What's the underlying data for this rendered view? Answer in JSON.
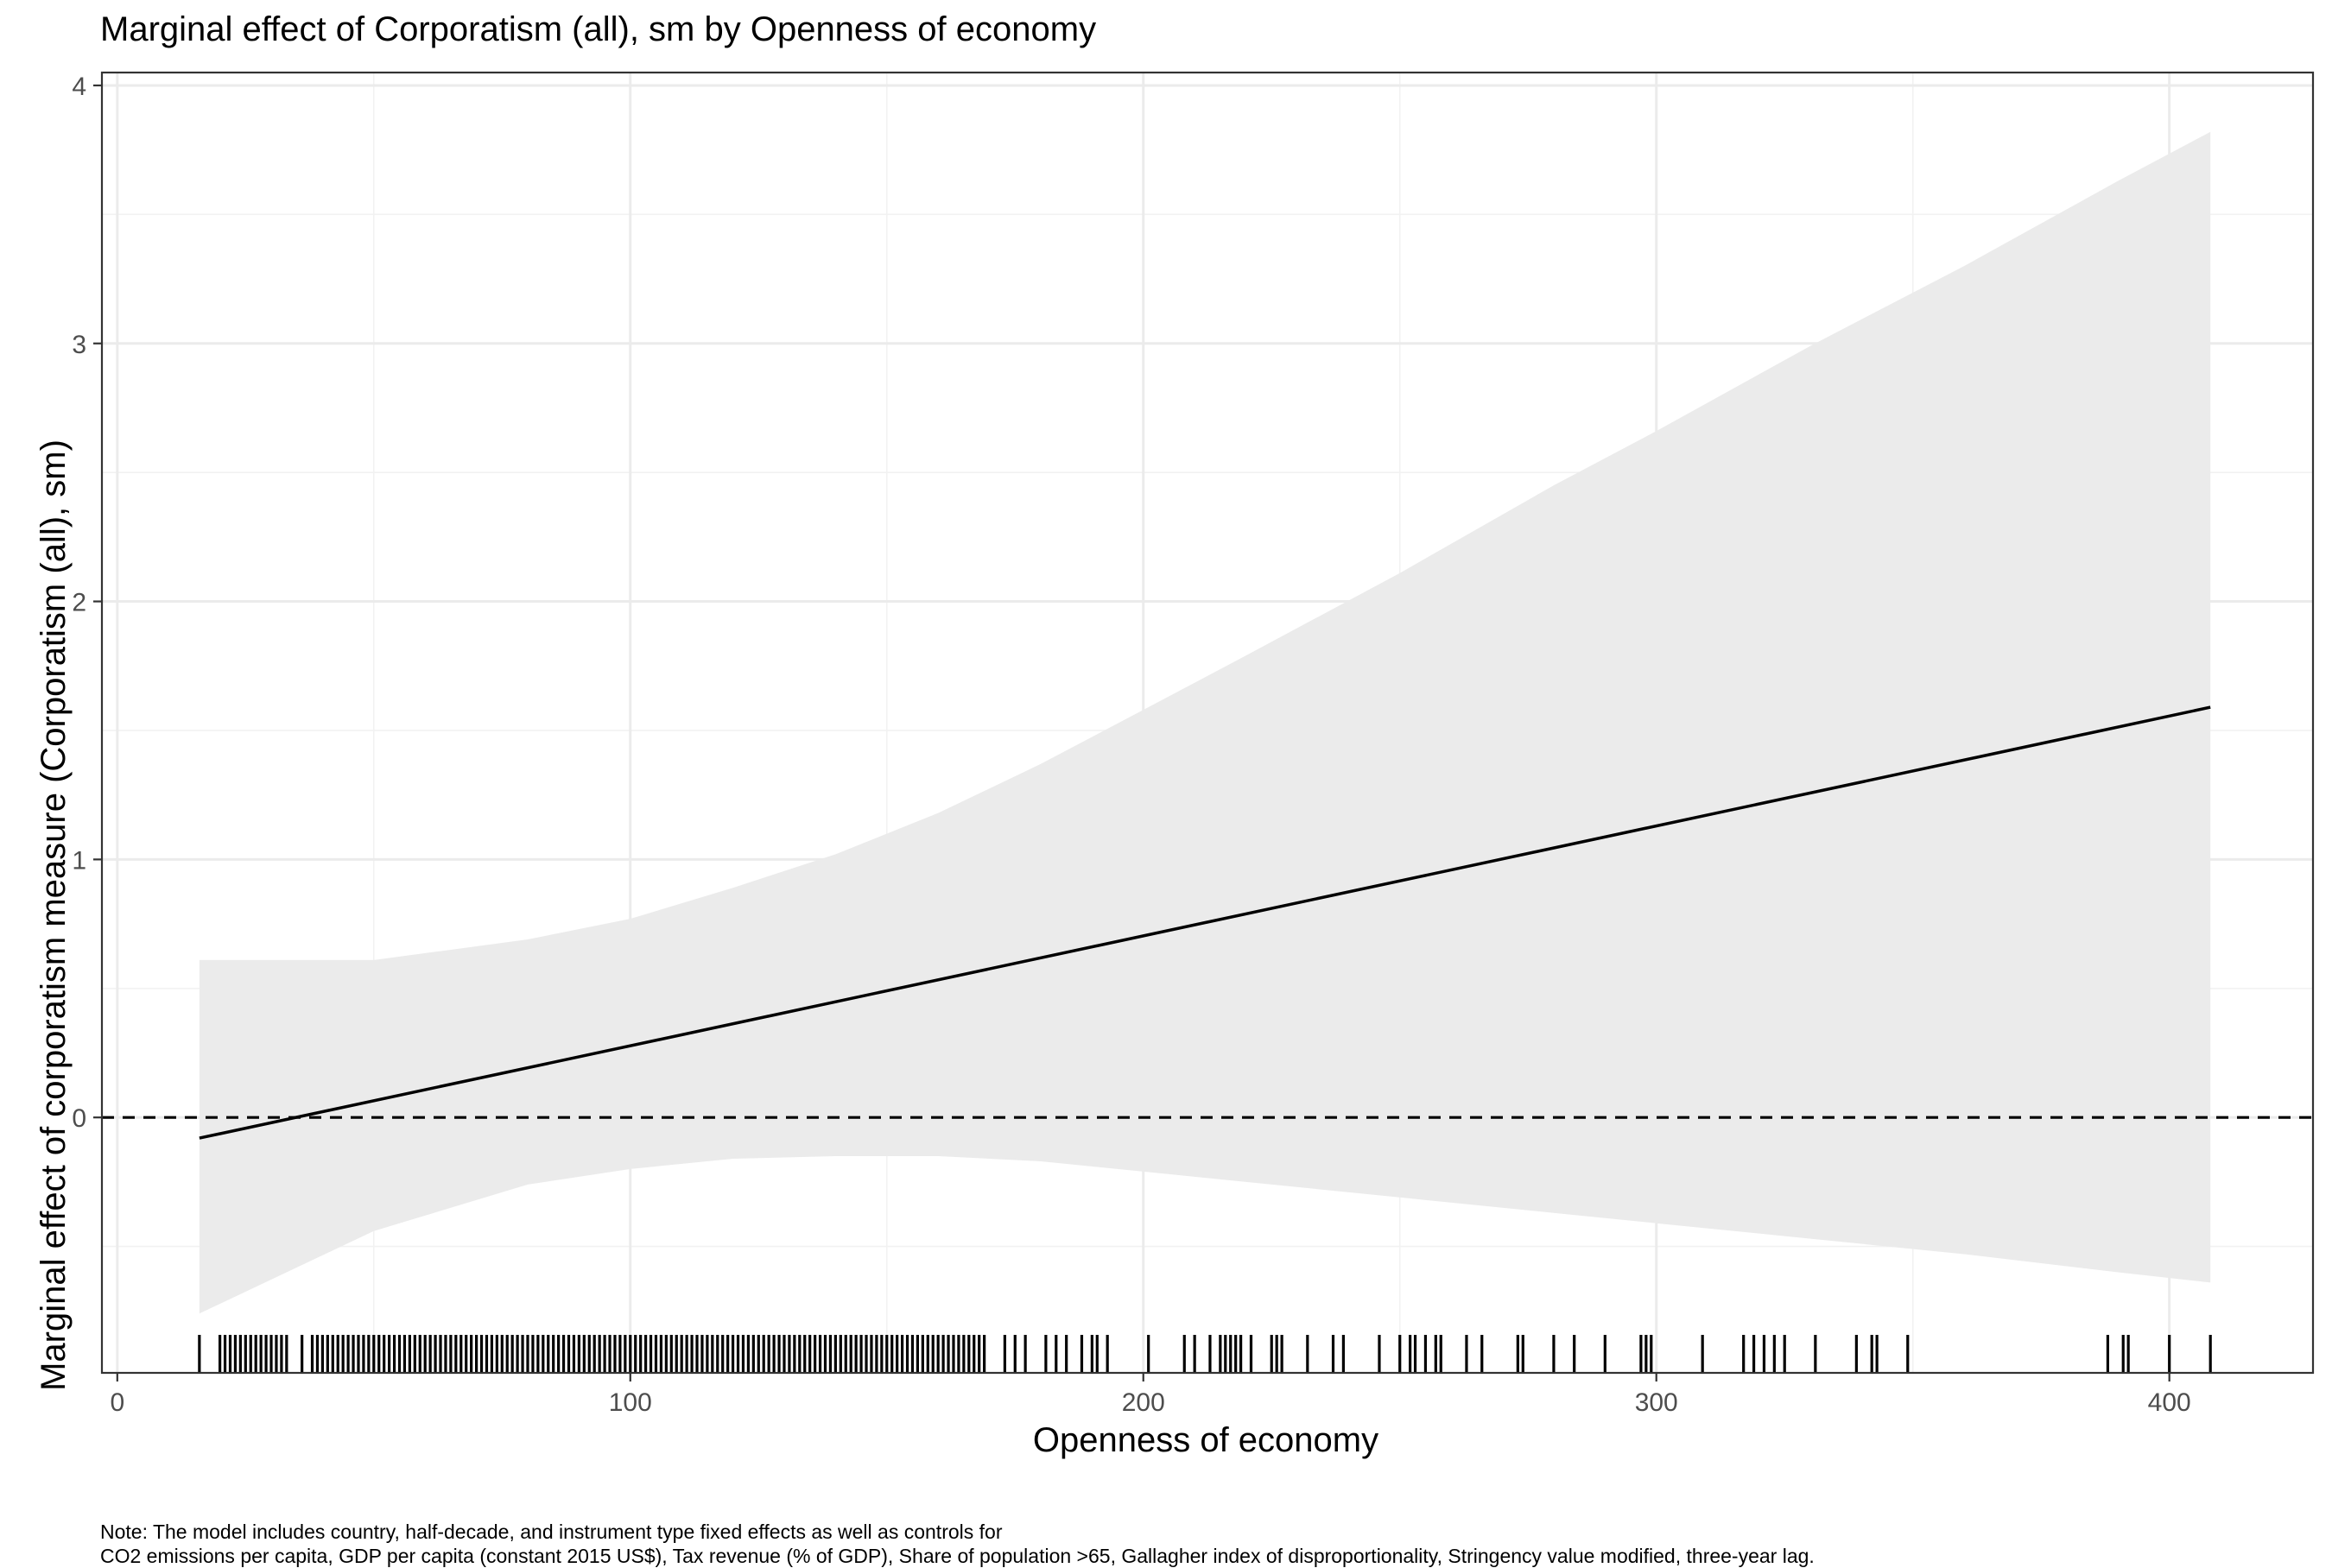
{
  "chart_data": {
    "type": "line",
    "title": "Marginal effect of Corporatism (all), sm by Openness of economy",
    "xlabel": "Openness of economy",
    "ylabel": "Marginal effect of corporatism measure (Corporatism (all), sm)",
    "xlim": [
      -3,
      428
    ],
    "ylim": [
      -0.99,
      4.05
    ],
    "x_ticks": [
      0,
      100,
      200,
      300,
      400
    ],
    "x_tick_labels": [
      "0",
      "100",
      "200",
      "300",
      "400"
    ],
    "y_ticks": [
      0,
      1,
      2,
      3,
      4
    ],
    "y_tick_labels": [
      "0",
      "1",
      "2",
      "3",
      "4"
    ],
    "grid": true,
    "reference_line": {
      "y": 0,
      "style": "dashed",
      "color": "#000000"
    },
    "series": [
      {
        "kind": "estimate_line",
        "color": "#000000",
        "x": [
          16,
          408
        ],
        "y": [
          -0.08,
          1.59
        ]
      }
    ],
    "confidence_band": {
      "color": "#ebebeb",
      "x": [
        16,
        50,
        80,
        100,
        120,
        140,
        160,
        180,
        200,
        220,
        250,
        280,
        300,
        330,
        360,
        390,
        408
      ],
      "upper": [
        0.61,
        0.61,
        0.69,
        0.77,
        0.89,
        1.02,
        1.18,
        1.37,
        1.58,
        1.79,
        2.11,
        2.45,
        2.66,
        2.99,
        3.3,
        3.63,
        3.82
      ],
      "lower": [
        -0.76,
        -0.44,
        -0.26,
        -0.2,
        -0.16,
        -0.15,
        -0.15,
        -0.17,
        -0.21,
        -0.25,
        -0.31,
        -0.37,
        -0.41,
        -0.47,
        -0.53,
        -0.6,
        -0.64
      ]
    },
    "rug": {
      "color": "#000000",
      "x": [
        16,
        20,
        21,
        22,
        23,
        24,
        25,
        26,
        27,
        28,
        29,
        30,
        31,
        32,
        33,
        36,
        38,
        39,
        40,
        41,
        42,
        43,
        44,
        45,
        46,
        47,
        48,
        49,
        50,
        51,
        52,
        53,
        54,
        55,
        56,
        57,
        58,
        59,
        60,
        61,
        62,
        63,
        64,
        65,
        66,
        67,
        68,
        69,
        70,
        71,
        72,
        73,
        74,
        75,
        76,
        77,
        78,
        79,
        80,
        81,
        82,
        83,
        84,
        85,
        86,
        87,
        88,
        89,
        90,
        91,
        92,
        93,
        94,
        95,
        96,
        97,
        98,
        99,
        100,
        101,
        102,
        103,
        104,
        105,
        106,
        107,
        108,
        109,
        110,
        111,
        112,
        113,
        114,
        115,
        116,
        117,
        118,
        119,
        120,
        121,
        122,
        123,
        124,
        125,
        126,
        127,
        128,
        129,
        130,
        131,
        132,
        133,
        134,
        135,
        136,
        137,
        138,
        139,
        140,
        141,
        142,
        143,
        144,
        145,
        146,
        147,
        148,
        149,
        150,
        151,
        152,
        153,
        154,
        155,
        156,
        157,
        158,
        159,
        160,
        161,
        162,
        163,
        164,
        165,
        166,
        167,
        168,
        169,
        173,
        175,
        177,
        181,
        183,
        185,
        188,
        190,
        191,
        193,
        201,
        208,
        210,
        213,
        215,
        216,
        217,
        218,
        219,
        221,
        225,
        226,
        227,
        232,
        237,
        239,
        246,
        250,
        252,
        253,
        255,
        257,
        258,
        263,
        266,
        273,
        274,
        280,
        284,
        290,
        297,
        298,
        299,
        309,
        317,
        319,
        321,
        323,
        325,
        331,
        339,
        342,
        343,
        349,
        388,
        391,
        392,
        400,
        408
      ]
    }
  },
  "note": {
    "line1": "Note: The model includes country, half-decade, and instrument type fixed effects as well as controls for",
    "line2": "CO2 emissions per capita, GDP per capita (constant 2015 US$), Tax revenue (% of GDP), Share of population >65, Gallagher index of disproportionality, Stringency value modified, three-year lag."
  }
}
